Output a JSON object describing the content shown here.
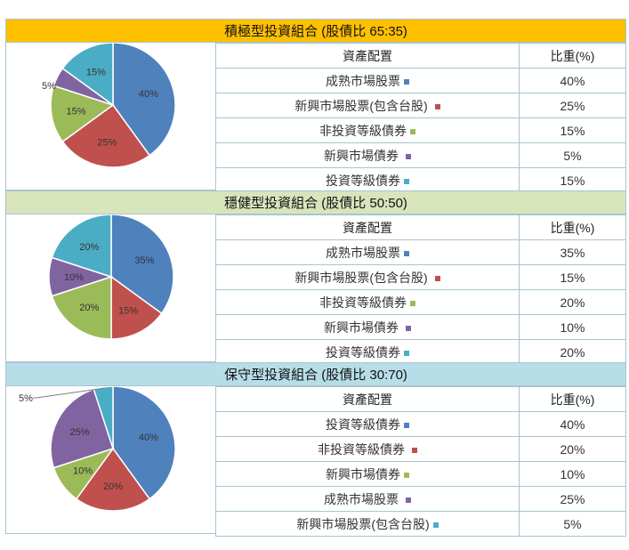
{
  "sections": [
    {
      "title": "積極型投資組合 (股債比 65:35)",
      "banner_color": "#ffc000",
      "header": {
        "asset": "資產配置",
        "weight": "比重(%)"
      },
      "rows": [
        {
          "name": "成熟市場股票",
          "pct": "40%",
          "color": "#4f81bd"
        },
        {
          "name": "新興市場股票(包含台股)",
          "pct": "25%",
          "color": "#c0504d"
        },
        {
          "name": "非投資等級債券",
          "pct": "15%",
          "color": "#9bbb59"
        },
        {
          "name": "新興市場債券",
          "pct": "5%",
          "color": "#8064a2"
        },
        {
          "name": "投資等級債券",
          "pct": "15%",
          "color": "#4bacc6"
        }
      ]
    },
    {
      "title": "穩健型投資組合 (股債比 50:50)",
      "banner_color": "#d8e4bc",
      "header": {
        "asset": "資產配置",
        "weight": "比重(%)"
      },
      "rows": [
        {
          "name": "成熟市場股票",
          "pct": "35%",
          "color": "#4f81bd"
        },
        {
          "name": "新興市場股票(包含台股)",
          "pct": "15%",
          "color": "#c0504d"
        },
        {
          "name": "非投資等級債券",
          "pct": "20%",
          "color": "#9bbb59"
        },
        {
          "name": "新興市場債券",
          "pct": "10%",
          "color": "#8064a2"
        },
        {
          "name": "投資等級債券",
          "pct": "20%",
          "color": "#4bacc6"
        }
      ]
    },
    {
      "title": "保守型投資組合 (股債比 30:70)",
      "banner_color": "#b7dee8",
      "header": {
        "asset": "資產配置",
        "weight": "比重(%)"
      },
      "rows": [
        {
          "name": "投資等級債券",
          "pct": "40%",
          "color": "#4f81bd"
        },
        {
          "name": "非投資等級債券",
          "pct": "20%",
          "color": "#c0504d"
        },
        {
          "name": "新興市場債券",
          "pct": "10%",
          "color": "#9bbb59"
        },
        {
          "name": "成熟市場股票",
          "pct": "25%",
          "color": "#8064a2"
        },
        {
          "name": "新興市場股票(包含台股)",
          "pct": "5%",
          "color": "#4bacc6"
        }
      ]
    }
  ],
  "chart_data": [
    {
      "type": "pie",
      "title": "積極型投資組合 (股債比 65:35)",
      "categories": [
        "成熟市場股票",
        "新興市場股票(包含台股)",
        "非投資等級債券",
        "新興市場債券",
        "投資等級債券"
      ],
      "values": [
        40,
        25,
        15,
        5,
        15
      ],
      "labels": [
        "40%",
        "25%",
        "15%",
        "5%",
        "15%"
      ],
      "colors": [
        "#4f81bd",
        "#c0504d",
        "#9bbb59",
        "#8064a2",
        "#4bacc6"
      ]
    },
    {
      "type": "pie",
      "title": "穩健型投資組合 (股債比 50:50)",
      "categories": [
        "成熟市場股票",
        "新興市場股票(包含台股)",
        "非投資等級債券",
        "新興市場債券",
        "投資等級債券"
      ],
      "values": [
        35,
        15,
        20,
        10,
        20
      ],
      "labels": [
        "35%",
        "15%",
        "20%",
        "10%",
        "20%"
      ],
      "colors": [
        "#4f81bd",
        "#c0504d",
        "#9bbb59",
        "#8064a2",
        "#4bacc6"
      ]
    },
    {
      "type": "pie",
      "title": "保守型投資組合 (股債比 30:70)",
      "categories": [
        "投資等級債券",
        "非投資等級債券",
        "新興市場債券",
        "成熟市場股票",
        "新興市場股票(包含台股)"
      ],
      "values": [
        40,
        20,
        10,
        25,
        5
      ],
      "labels": [
        "40%",
        "20%",
        "10%",
        "25%",
        "5%"
      ],
      "colors": [
        "#4f81bd",
        "#c0504d",
        "#9bbb59",
        "#8064a2",
        "#4bacc6"
      ]
    }
  ]
}
